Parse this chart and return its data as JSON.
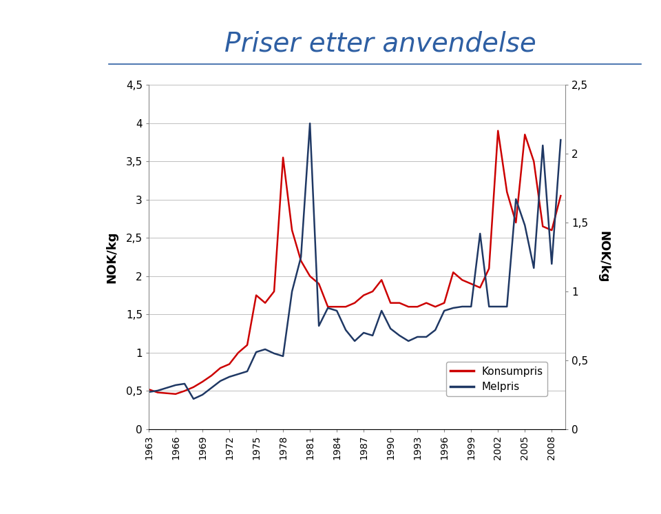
{
  "title": "Priser etter anvendelse",
  "title_color": "#2E5FA3",
  "ylabel_left": "NOK/kg",
  "ylabel_right": "NOK/kg",
  "years": [
    1963,
    1964,
    1965,
    1966,
    1967,
    1968,
    1969,
    1970,
    1971,
    1972,
    1973,
    1974,
    1975,
    1976,
    1977,
    1978,
    1979,
    1980,
    1981,
    1982,
    1983,
    1984,
    1985,
    1986,
    1987,
    1988,
    1989,
    1990,
    1991,
    1992,
    1993,
    1994,
    1995,
    1996,
    1997,
    1998,
    1999,
    2000,
    2001,
    2002,
    2003,
    2004,
    2005,
    2006,
    2007,
    2008,
    2009
  ],
  "konsumpris": [
    0.52,
    0.48,
    0.47,
    0.46,
    0.5,
    0.55,
    0.62,
    0.7,
    0.8,
    0.85,
    1.0,
    1.1,
    1.75,
    1.65,
    1.8,
    3.55,
    2.6,
    2.2,
    2.0,
    1.9,
    1.6,
    1.6,
    1.6,
    1.65,
    1.75,
    1.8,
    1.95,
    1.65,
    1.65,
    1.6,
    1.6,
    1.65,
    1.6,
    1.65,
    2.05,
    1.95,
    1.9,
    1.85,
    2.1,
    3.9,
    3.1,
    2.7,
    3.85,
    3.5,
    2.65,
    2.6,
    3.05
  ],
  "melpris": [
    0.27,
    0.28,
    0.3,
    0.32,
    0.33,
    0.22,
    0.25,
    0.3,
    0.35,
    0.38,
    0.4,
    0.42,
    0.56,
    0.58,
    0.55,
    0.53,
    1.0,
    1.25,
    2.22,
    0.75,
    0.88,
    0.86,
    0.72,
    0.64,
    0.7,
    0.68,
    0.86,
    0.73,
    0.68,
    0.64,
    0.67,
    0.67,
    0.72,
    0.86,
    0.88,
    0.89,
    0.89,
    1.42,
    0.89,
    0.89,
    0.89,
    1.67,
    1.48,
    1.17,
    2.06,
    1.2,
    2.1
  ],
  "konsumpris_color": "#CC0000",
  "melpris_color": "#1F3864",
  "ylim_left": [
    0,
    4.5
  ],
  "ylim_right": [
    0,
    2.5
  ],
  "yticks_left": [
    0,
    0.5,
    1.0,
    1.5,
    2.0,
    2.5,
    3.0,
    3.5,
    4.0,
    4.5
  ],
  "ytick_labels_left": [
    "0",
    "0,5",
    "1",
    "1,5",
    "2",
    "2,5",
    "3",
    "3,5",
    "4",
    "4,5"
  ],
  "yticks_right": [
    0,
    0.5,
    1.0,
    1.5,
    2.0,
    2.5
  ],
  "ytick_labels_right": [
    "0",
    "0,5",
    "1",
    "1,5",
    "2",
    "2,5"
  ],
  "xticks": [
    1963,
    1966,
    1969,
    1972,
    1975,
    1978,
    1981,
    1984,
    1987,
    1990,
    1993,
    1996,
    1999,
    2002,
    2005,
    2008
  ],
  "background_color": "#FFFFFF",
  "plot_bg_color": "#FFFFFF",
  "grid_color": "#BEBEBE",
  "sidebar_color": "#2255A4",
  "line_width": 1.8,
  "legend_konsumpris": "Konsumpris",
  "legend_melpris": "Melpris",
  "fig_width": 9.6,
  "fig_height": 7.46,
  "dpi": 100
}
